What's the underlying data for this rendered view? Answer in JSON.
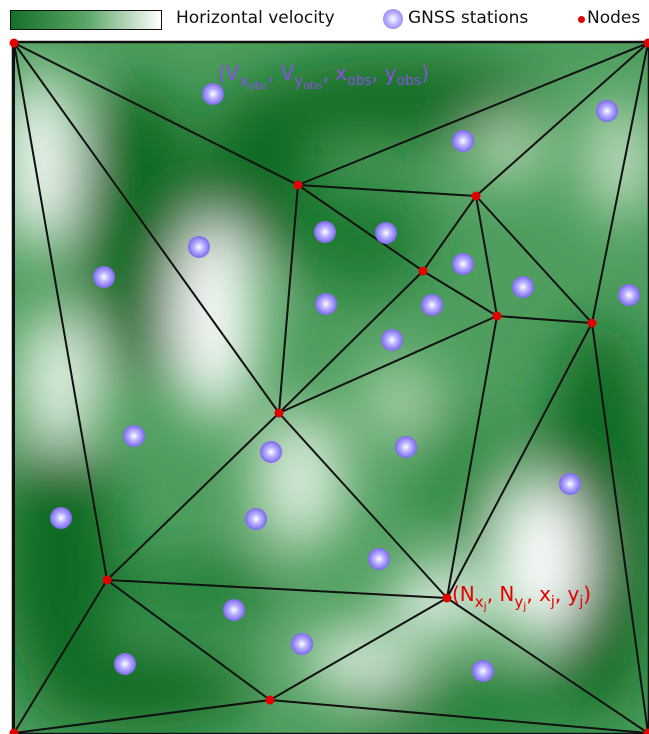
{
  "legend": {
    "velocity_label": "Horizontal velocity",
    "stations_label": "GNSS stations",
    "nodes_label": "Nodes",
    "colors": {
      "low": "#ffffff",
      "high": "#14702a",
      "station": "#7c68ee",
      "node": "#e30000"
    }
  },
  "annotations": {
    "observation": {
      "open": "(V",
      "sub1": "x",
      "subsub1": "obs",
      "sep1": ", V",
      "sub2": "y",
      "subsub2": "obs",
      "sep2": ", x",
      "sub3": "obs",
      "sep3": ", y",
      "sub4": "obs",
      "close": ")"
    },
    "node": {
      "open": "(N",
      "sub1": "x",
      "subsub1": "j",
      "sep1": ", N",
      "sub2": "y",
      "subsub2": "j",
      "sep2": ", x",
      "sub3": "j",
      "sep3": ", y",
      "sub4": "j",
      "close": ")"
    }
  }
}
